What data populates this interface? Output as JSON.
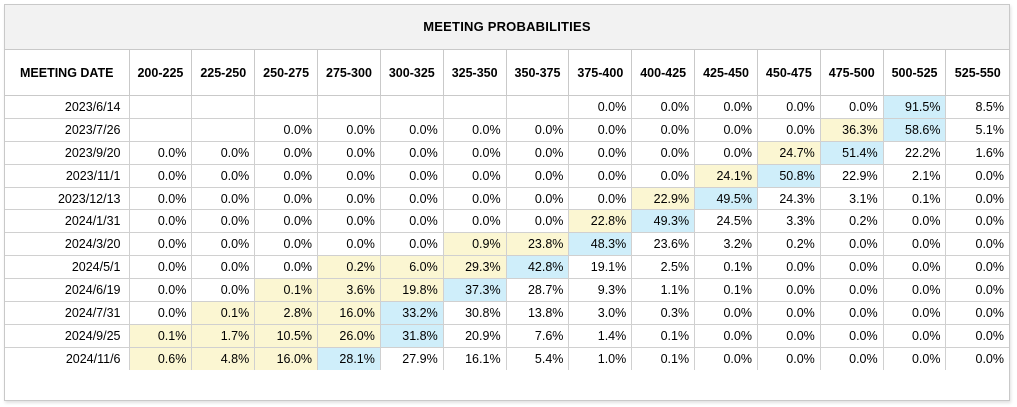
{
  "title": "MEETING PROBABILITIES",
  "colors": {
    "highlight": "#cfeefa",
    "above_highlight": "#fbf6d2",
    "header_bg": "#f2f2f2"
  },
  "columns": [
    "MEETING DATE",
    "200-225",
    "225-250",
    "250-275",
    "275-300",
    "300-325",
    "325-350",
    "350-375",
    "375-400",
    "400-425",
    "425-450",
    "450-475",
    "475-500",
    "500-525",
    "525-550"
  ],
  "rows": [
    {
      "date": "2023/6/14",
      "cells": [
        "",
        "",
        "",
        "",
        "",
        "",
        "",
        "0.0%",
        "0.0%",
        "0.0%",
        "0.0%",
        "0.0%",
        "91.5%",
        "8.5%"
      ],
      "highlight": 12
    },
    {
      "date": "2023/7/26",
      "cells": [
        "",
        "",
        "0.0%",
        "0.0%",
        "0.0%",
        "0.0%",
        "0.0%",
        "0.0%",
        "0.0%",
        "0.0%",
        "0.0%",
        "36.3%",
        "58.6%",
        "5.1%"
      ],
      "highlight": 12
    },
    {
      "date": "2023/9/20",
      "cells": [
        "0.0%",
        "0.0%",
        "0.0%",
        "0.0%",
        "0.0%",
        "0.0%",
        "0.0%",
        "0.0%",
        "0.0%",
        "0.0%",
        "24.7%",
        "51.4%",
        "22.2%",
        "1.6%"
      ],
      "highlight": 11
    },
    {
      "date": "2023/11/1",
      "cells": [
        "0.0%",
        "0.0%",
        "0.0%",
        "0.0%",
        "0.0%",
        "0.0%",
        "0.0%",
        "0.0%",
        "0.0%",
        "24.1%",
        "50.8%",
        "22.9%",
        "2.1%",
        "0.0%"
      ],
      "highlight": 10
    },
    {
      "date": "2023/12/13",
      "cells": [
        "0.0%",
        "0.0%",
        "0.0%",
        "0.0%",
        "0.0%",
        "0.0%",
        "0.0%",
        "0.0%",
        "22.9%",
        "49.5%",
        "24.3%",
        "3.1%",
        "0.1%",
        "0.0%"
      ],
      "highlight": 9
    },
    {
      "date": "2024/1/31",
      "cells": [
        "0.0%",
        "0.0%",
        "0.0%",
        "0.0%",
        "0.0%",
        "0.0%",
        "0.0%",
        "22.8%",
        "49.3%",
        "24.5%",
        "3.3%",
        "0.2%",
        "0.0%",
        "0.0%"
      ],
      "highlight": 8
    },
    {
      "date": "2024/3/20",
      "cells": [
        "0.0%",
        "0.0%",
        "0.0%",
        "0.0%",
        "0.0%",
        "0.9%",
        "23.8%",
        "48.3%",
        "23.6%",
        "3.2%",
        "0.2%",
        "0.0%",
        "0.0%",
        "0.0%"
      ],
      "highlight": 7
    },
    {
      "date": "2024/5/1",
      "cells": [
        "0.0%",
        "0.0%",
        "0.0%",
        "0.2%",
        "6.0%",
        "29.3%",
        "42.8%",
        "19.1%",
        "2.5%",
        "0.1%",
        "0.0%",
        "0.0%",
        "0.0%",
        "0.0%"
      ],
      "highlight": 6
    },
    {
      "date": "2024/6/19",
      "cells": [
        "0.0%",
        "0.0%",
        "0.1%",
        "3.6%",
        "19.8%",
        "37.3%",
        "28.7%",
        "9.3%",
        "1.1%",
        "0.1%",
        "0.0%",
        "0.0%",
        "0.0%",
        "0.0%"
      ],
      "highlight": 5
    },
    {
      "date": "2024/7/31",
      "cells": [
        "0.0%",
        "0.1%",
        "2.8%",
        "16.0%",
        "33.2%",
        "30.8%",
        "13.8%",
        "3.0%",
        "0.3%",
        "0.0%",
        "0.0%",
        "0.0%",
        "0.0%",
        "0.0%"
      ],
      "highlight": 4
    },
    {
      "date": "2024/9/25",
      "cells": [
        "0.1%",
        "1.7%",
        "10.5%",
        "26.0%",
        "31.8%",
        "20.9%",
        "7.6%",
        "1.4%",
        "0.1%",
        "0.0%",
        "0.0%",
        "0.0%",
        "0.0%",
        "0.0%"
      ],
      "highlight": 4
    },
    {
      "date": "2024/11/6",
      "cells": [
        "0.6%",
        "4.8%",
        "16.0%",
        "28.1%",
        "27.9%",
        "16.1%",
        "5.4%",
        "1.0%",
        "0.1%",
        "0.0%",
        "0.0%",
        "0.0%",
        "0.0%",
        "0.0%"
      ],
      "highlight": 3
    }
  ]
}
